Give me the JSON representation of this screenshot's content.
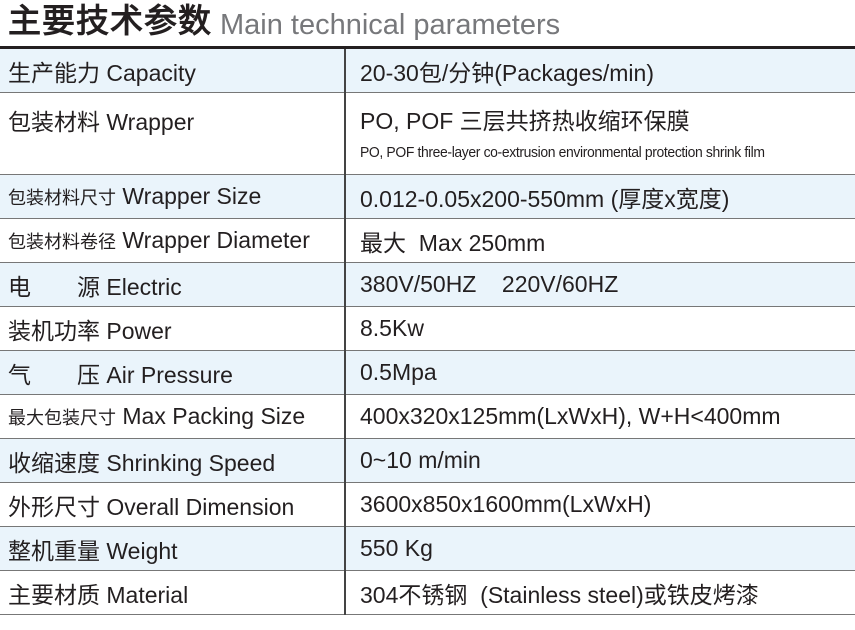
{
  "title": {
    "cn": "主要技术参数",
    "en": "Main technical parameters"
  },
  "rows": [
    {
      "cn": "生产能力",
      "en": "Capacity",
      "value": "20-30包/分钟(Packages/min)"
    },
    {
      "cn": "包装材料",
      "en": "Wrapper",
      "value": "PO, POF 三层共挤热收缩环保膜",
      "value2": "PO, POF three-layer co-extrusion environmental protection shrink film"
    },
    {
      "cn": "包装材料尺寸",
      "en": "Wrapper Size",
      "value": "0.012-0.05x200-550mm (厚度x宽度)"
    },
    {
      "cn": "包装材料卷径",
      "en": "Wrapper Diameter",
      "value": "最大  Max 250mm"
    },
    {
      "cn": "电　　源",
      "en": "Electric",
      "value": "380V/50HZ    220V/60HZ"
    },
    {
      "cn": "装机功率",
      "en": "Power",
      "value": "8.5Kw"
    },
    {
      "cn": "气　　压",
      "en": "Air Pressure",
      "value": "0.5Mpa"
    },
    {
      "cn": "最大包装尺寸",
      "en": "Max Packing Size",
      "value": "400x320x125mm(LxWxH), W+H<400mm"
    },
    {
      "cn": "收缩速度",
      "en": "Shrinking Speed",
      "value": "0~10 m/min"
    },
    {
      "cn": "外形尺寸",
      "en": "Overall Dimension",
      "value": "3600x850x1600mm(LxWxH)"
    },
    {
      "cn": "整机重量",
      "en": "Weight",
      "value": "550 Kg"
    },
    {
      "cn": "主要材质",
      "en": "Material",
      "value": "304不锈钢  (Stainless steel)或铁皮烤漆"
    }
  ],
  "colors": {
    "row_alt": "#eaf4fb",
    "title_en": "#77787b",
    "text": "#231f20"
  }
}
